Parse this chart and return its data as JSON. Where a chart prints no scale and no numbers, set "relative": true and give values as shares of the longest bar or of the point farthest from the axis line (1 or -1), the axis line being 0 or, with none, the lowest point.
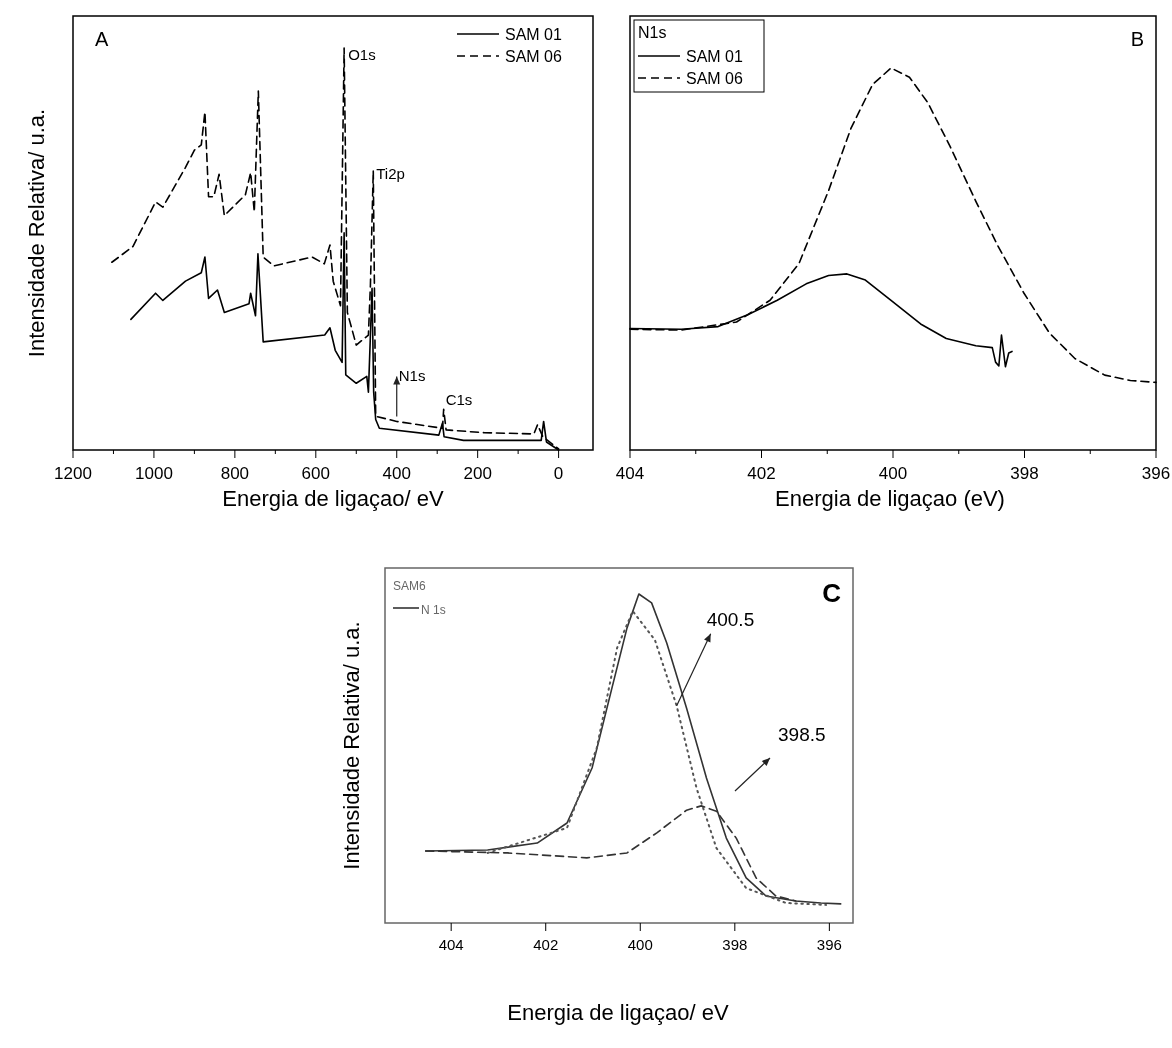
{
  "chart_data": [
    {
      "type": "line",
      "relative": true,
      "xlabel": "Energia de ligaçao/ eV",
      "ylabel": "Intensidade Relativa/ u.a.",
      "xlim": [
        1200,
        -85
      ],
      "xticks": [
        1200,
        {
          "value": 1100,
          "label": null
        },
        1000,
        {
          "value": 900,
          "label": null
        },
        800,
        {
          "value": 700,
          "label": null
        },
        600,
        {
          "value": 500,
          "label": null
        },
        400,
        {
          "value": 300,
          "label": null
        },
        200,
        {
          "value": 100,
          "label": null
        },
        0
      ],
      "tick_labels": "x",
      "legend": "top right",
      "series": [
        {
          "name": "SAM 01",
          "color": "#000000",
          "line_style": "solid",
          "x": [
            1057,
            996,
            978,
            922,
            883,
            874,
            865,
            843,
            826,
            765,
            761,
            749,
            743,
            730,
            578,
            565,
            552,
            535,
            530,
            526,
            500,
            474,
            470,
            461,
            457,
            452,
            443,
            296,
            287,
            283,
            235,
            43,
            37,
            30,
            0
          ],
          "values": [
            0.325,
            0.39,
            0.372,
            0.42,
            0.441,
            0.48,
            0.377,
            0.398,
            0.342,
            0.364,
            0.39,
            0.334,
            0.488,
            0.269,
            0.286,
            0.304,
            0.248,
            0.218,
            0.54,
            0.187,
            0.166,
            0.183,
            0.144,
            0.402,
            0.144,
            0.076,
            0.054,
            0.037,
            0.067,
            0.033,
            0.024,
            0.024,
            0.071,
            0.02,
            0
          ]
        },
        {
          "name": "SAM 06",
          "color": "#000000",
          "line_style": "dashed",
          "x": [
            1104,
            1052,
            996,
            978,
            922,
            900,
            883,
            874,
            865,
            852,
            839,
            826,
            774,
            761,
            752,
            742,
            730,
            704,
            609,
            579,
            565,
            557,
            539,
            530,
            522,
            500,
            470,
            465,
            458,
            452,
            400,
            287,
            284,
            278,
            183,
            61,
            52,
            39,
            0
          ],
          "values": [
            0.467,
            0.506,
            0.617,
            0.604,
            0.703,
            0.746,
            0.759,
            0.841,
            0.63,
            0.63,
            0.686,
            0.583,
            0.635,
            0.69,
            0.592,
            0.893,
            0.48,
            0.458,
            0.48,
            0.463,
            0.51,
            0.42,
            0.359,
            1,
            0.342,
            0.261,
            0.286,
            0.411,
            0.695,
            0.084,
            0.071,
            0.054,
            0.101,
            0.05,
            0.043,
            0.04,
            0.063,
            0.033,
            0.003
          ]
        }
      ],
      "annotations": [
        "A",
        {
          "text": "O1s",
          "x": 530,
          "y": 1
        },
        {
          "text": "Ti2p",
          "x": 458,
          "y": 0.695
        },
        {
          "text": "N1s",
          "x": 400,
          "y": 0.071
        },
        {
          "text": "C1s",
          "x": 284,
          "y": 0.101
        }
      ]
    },
    {
      "type": "line",
      "relative": true,
      "xlabel": "Energia de ligaçao (eV)",
      "xlim": [
        404,
        396
      ],
      "xticks": [
        404,
        {
          "value": 403,
          "label": null
        },
        402,
        {
          "value": 401,
          "label": null
        },
        400,
        {
          "value": 399,
          "label": null
        },
        398,
        {
          "value": 397,
          "label": null
        },
        396
      ],
      "tick_labels": "x",
      "legend": "top left",
      "legend_title": "N1s",
      "series": [
        {
          "name": "SAM 01",
          "color": "#000000",
          "line_style": "solid",
          "x": [
            404,
            403.22,
            402.66,
            402.21,
            401.76,
            401.32,
            400.98,
            400.7,
            400.42,
            400.03,
            399.58,
            399.19,
            398.74,
            398.49,
            398.44,
            398.39,
            398.35,
            398.29,
            398.24,
            398.19
          ],
          "values": [
            0.318,
            0.316,
            0.323,
            0.354,
            0.392,
            0.435,
            0.457,
            0.461,
            0.445,
            0.392,
            0.33,
            0.292,
            0.273,
            0.268,
            0.23,
            0.22,
            0.301,
            0.218,
            0.254,
            0.258
          ]
        },
        {
          "name": "SAM 06",
          "color": "#000000",
          "line_style": "dashed",
          "x": [
            404,
            403.22,
            402.38,
            401.87,
            401.43,
            400.98,
            400.64,
            400.31,
            400.03,
            399.75,
            399.47,
            399.13,
            398.74,
            398.41,
            398.01,
            397.62,
            397.23,
            396.78,
            396.39,
            396
          ],
          "values": [
            0.316,
            0.314,
            0.335,
            0.392,
            0.488,
            0.679,
            0.842,
            0.957,
            1,
            0.976,
            0.909,
            0.794,
            0.651,
            0.536,
            0.411,
            0.306,
            0.239,
            0.196,
            0.182,
            0.177
          ]
        }
      ],
      "annotations": [
        "B"
      ]
    },
    {
      "type": "line",
      "relative": true,
      "xlabel": "Energia de ligaçao/ eV",
      "ylabel": "Intensidade Relativa/ u.a.",
      "xlim": [
        405.4,
        395.5
      ],
      "xticks": [
        404,
        402,
        400,
        398,
        396
      ],
      "tick_labels": "x",
      "legend": "top left",
      "legend_title": "SAM6",
      "series": [
        {
          "name": "N 1s",
          "color": "#333333",
          "line_style": "solid",
          "x": [
            404.54,
            403.23,
            402.18,
            401.55,
            401.02,
            400.6,
            400.28,
            400.03,
            399.76,
            399.44,
            399.02,
            398.6,
            398.18,
            397.76,
            397.34,
            396.71,
            396.18,
            395.76
          ],
          "values": [
            0.219,
            0.222,
            0.243,
            0.304,
            0.471,
            0.714,
            0.897,
            1,
            0.973,
            0.851,
            0.653,
            0.441,
            0.258,
            0.137,
            0.082,
            0.067,
            0.061,
            0.058
          ]
        },
        {
          "color": "#555555",
          "line_style": "dotted",
          "x": [
            403.23,
            401.55,
            400.92,
            400.49,
            400.16,
            399.69,
            399.23,
            398.81,
            398.39,
            397.76,
            396.92,
            396.07
          ],
          "values": [
            0.213,
            0.289,
            0.532,
            0.836,
            0.948,
            0.86,
            0.66,
            0.41,
            0.228,
            0.106,
            0.061,
            0.055
          ]
        },
        {
          "color": "#333333",
          "line_style": "dashed",
          "x": [
            404.54,
            402.81,
            401.13,
            400.28,
            399.65,
            399.02,
            398.71,
            398.39,
            397.97,
            397.55,
            397.13,
            396.71
          ],
          "values": [
            0.219,
            0.213,
            0.198,
            0.213,
            0.274,
            0.343,
            0.356,
            0.34,
            0.258,
            0.137,
            0.082,
            0.067
          ]
        }
      ],
      "annotations": [
        "C",
        {
          "text": "400.5",
          "x": 399.23,
          "y": 0.66
        },
        "398.5"
      ]
    }
  ]
}
